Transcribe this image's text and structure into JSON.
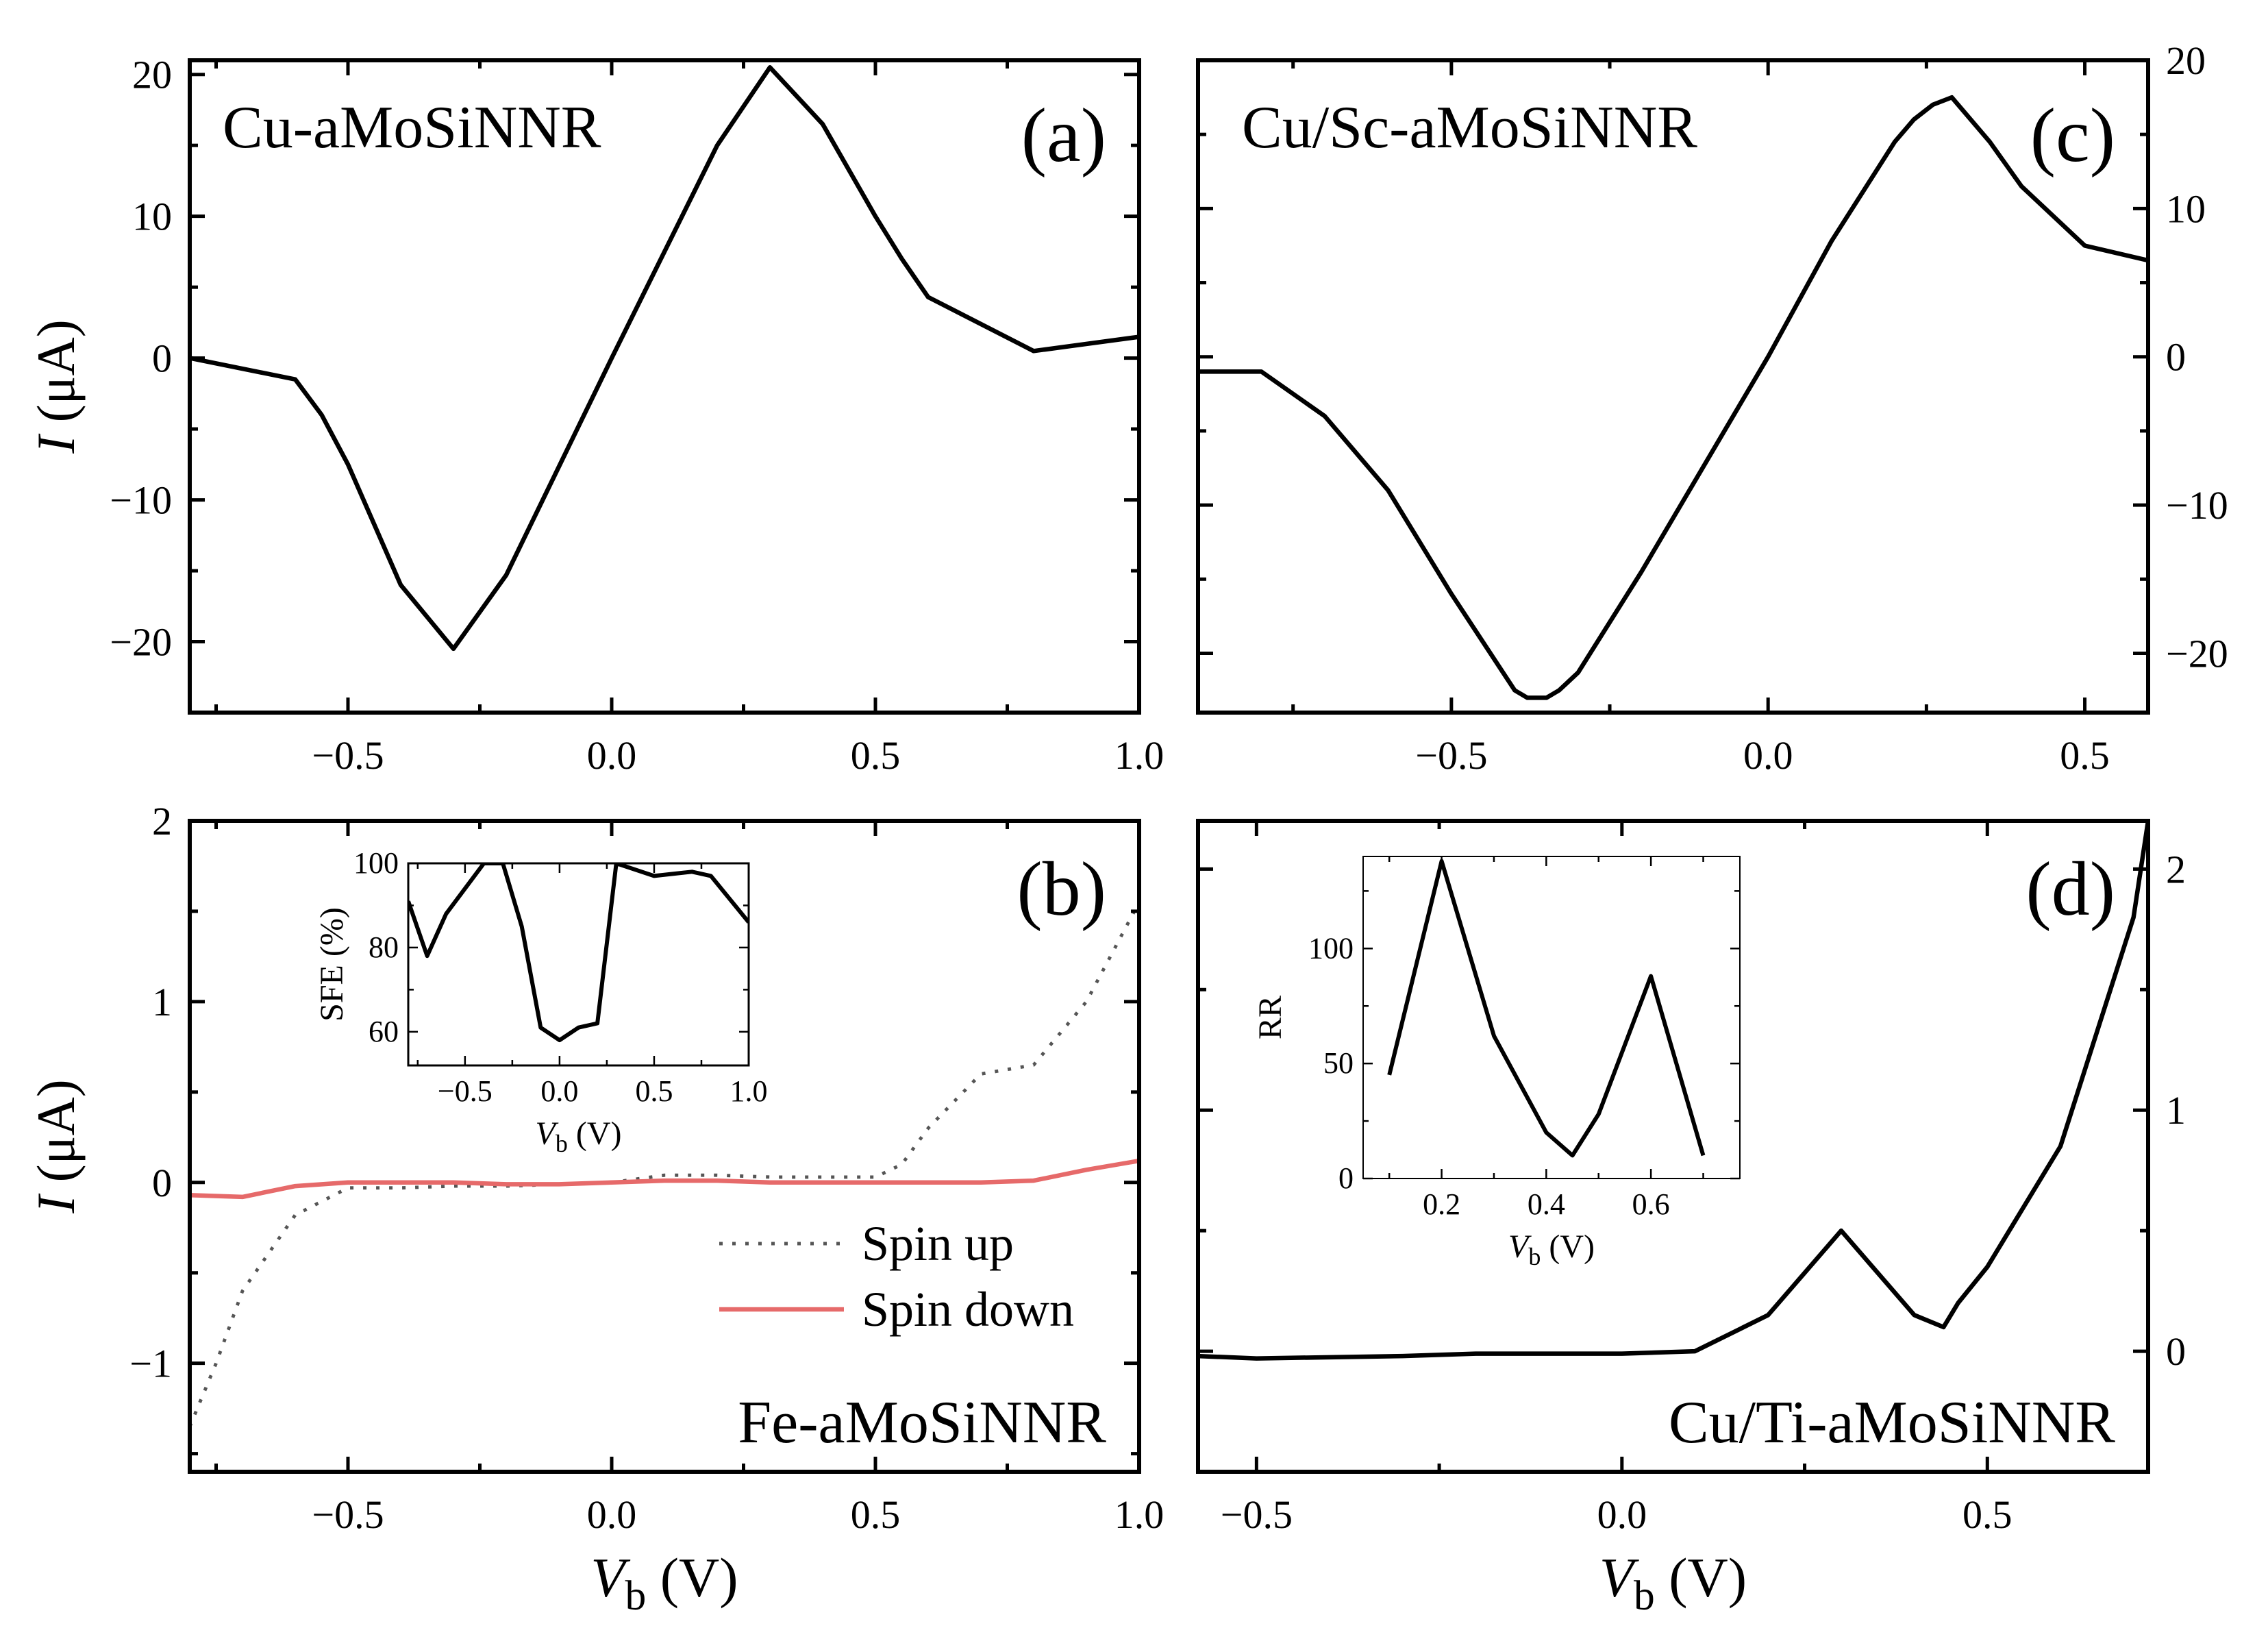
{
  "chart_data": [
    {
      "id": "a",
      "type": "line",
      "panel_label": "(a)",
      "title": "Cu-aMoSiNNR",
      "xlabel": "",
      "ylabel": {
        "italic": "I",
        "rest": " (μA)"
      },
      "xlim": [
        -0.8,
        1.0
      ],
      "ylim": [
        -25,
        21
      ],
      "xticks": [
        "−0.5",
        "0.0",
        "0.5",
        "1.0"
      ],
      "yticks": [
        "−20",
        "−10",
        "0",
        "10",
        "20"
      ],
      "series": [
        {
          "name": "I",
          "color": "#000000",
          "x": [
            -0.8,
            -0.6,
            -0.55,
            -0.5,
            -0.4,
            -0.3,
            -0.2,
            0.0,
            0.2,
            0.3,
            0.4,
            0.5,
            0.55,
            0.6,
            0.8,
            1.0
          ],
          "y": [
            0.0,
            -1.5,
            -4.0,
            -7.5,
            -16.0,
            -20.5,
            -15.3,
            0.0,
            15.0,
            20.5,
            16.5,
            10.0,
            7.0,
            4.3,
            0.5,
            1.5
          ]
        }
      ]
    },
    {
      "id": "b",
      "type": "line",
      "panel_label": "(b)",
      "title": "Fe-aMoSiNNR",
      "xlabel": {
        "italic": "V",
        "sub": "b",
        "rest": " (V)"
      },
      "ylabel": {
        "italic": "I",
        "rest": " (μA)"
      },
      "xlim": [
        -0.8,
        1.0
      ],
      "ylim": [
        -1.6,
        2.0
      ],
      "xticks": [
        "−0.5",
        "0.0",
        "0.5",
        "1.0"
      ],
      "yticks": [
        "−1",
        "0",
        "1",
        "2"
      ],
      "legend": [
        {
          "label": "Spin up",
          "color": "#555555",
          "style": "dotted"
        },
        {
          "label": "Spin down",
          "color": "#e66a6a",
          "style": "solid"
        }
      ],
      "series": [
        {
          "name": "Spin up",
          "color": "#555555",
          "x": [
            -0.8,
            -0.75,
            -0.7,
            -0.6,
            -0.5,
            -0.4,
            -0.3,
            -0.2,
            -0.1,
            0.0,
            0.1,
            0.2,
            0.3,
            0.4,
            0.5,
            0.55,
            0.6,
            0.7,
            0.8,
            0.9,
            1.0
          ],
          "y": [
            -1.35,
            -1.0,
            -0.6,
            -0.18,
            -0.03,
            -0.03,
            -0.02,
            -0.02,
            -0.01,
            0.0,
            0.04,
            0.04,
            0.03,
            0.03,
            0.03,
            0.1,
            0.3,
            0.6,
            0.65,
            1.0,
            1.55
          ]
        },
        {
          "name": "Spin down",
          "color": "#e66a6a",
          "x": [
            -0.8,
            -0.7,
            -0.6,
            -0.5,
            -0.4,
            -0.3,
            -0.2,
            -0.1,
            0.0,
            0.1,
            0.2,
            0.3,
            0.4,
            0.5,
            0.6,
            0.7,
            0.8,
            0.9,
            1.0
          ],
          "y": [
            -0.07,
            -0.08,
            -0.02,
            0.0,
            0.0,
            0.0,
            -0.01,
            -0.01,
            0.0,
            0.01,
            0.01,
            0.0,
            0.0,
            0.0,
            0.0,
            0.0,
            0.01,
            0.07,
            0.12
          ]
        }
      ],
      "inset": {
        "type": "line",
        "xlabel": {
          "italic": "V",
          "sub": "b",
          "rest": " (V)"
        },
        "ylabel": "SFE (%)",
        "xlim": [
          -0.8,
          1.0
        ],
        "ylim": [
          52,
          100
        ],
        "xticks": [
          "−0.5",
          "0.0",
          "0.5",
          "1.0"
        ],
        "yticks": [
          "60",
          "80",
          "100"
        ],
        "series": [
          {
            "name": "SFE",
            "color": "#000000",
            "x": [
              -0.8,
              -0.7,
              -0.6,
              -0.4,
              -0.3,
              -0.2,
              -0.1,
              0.0,
              0.1,
              0.2,
              0.3,
              0.5,
              0.7,
              0.8,
              1.0
            ],
            "y": [
              91,
              78,
              88,
              100,
              100,
              85,
              61,
              58,
              61,
              62,
              100,
              97,
              98,
              97,
              86
            ]
          }
        ]
      }
    },
    {
      "id": "c",
      "type": "line",
      "panel_label": "(c)",
      "title": "Cu/Sc-aMoSiNNR",
      "xlabel": "",
      "ylabel": "",
      "xlim": [
        -0.9,
        0.6
      ],
      "ylim": [
        -24,
        20
      ],
      "xticks": [
        "−0.5",
        "0.0",
        "0.5"
      ],
      "yticks": [
        "−20",
        "−10",
        "0",
        "10",
        "20"
      ],
      "series": [
        {
          "name": "I",
          "color": "#000000",
          "x": [
            -0.9,
            -0.8,
            -0.7,
            -0.6,
            -0.5,
            -0.4,
            -0.38,
            -0.35,
            -0.33,
            -0.3,
            -0.2,
            0.0,
            0.1,
            0.2,
            0.23,
            0.26,
            0.29,
            0.35,
            0.4,
            0.5,
            0.6
          ],
          "y": [
            -1.0,
            -1.0,
            -4.0,
            -9.0,
            -16.0,
            -22.5,
            -23.0,
            -23.0,
            -22.5,
            -21.3,
            -14.5,
            0.0,
            7.8,
            14.5,
            16.0,
            17.0,
            17.5,
            14.5,
            11.5,
            7.5,
            6.5
          ]
        }
      ]
    },
    {
      "id": "d",
      "type": "line",
      "panel_label": "(d)",
      "title": "Cu/Ti-aMoSiNNR",
      "xlabel": {
        "italic": "V",
        "sub": "b",
        "rest": " (V)"
      },
      "ylabel": "",
      "xlim": [
        -0.58,
        0.72
      ],
      "ylim": [
        -0.5,
        2.2
      ],
      "xticks": [
        "−0.5",
        "0.0",
        "0.5"
      ],
      "yticks": [
        "0",
        "1",
        "2"
      ],
      "series": [
        {
          "name": "I",
          "color": "#000000",
          "x": [
            -0.58,
            -0.5,
            -0.3,
            -0.2,
            0.0,
            0.1,
            0.2,
            0.3,
            0.4,
            0.44,
            0.46,
            0.5,
            0.6,
            0.7,
            0.72
          ],
          "y": [
            -0.02,
            -0.03,
            -0.02,
            -0.01,
            -0.01,
            0.0,
            0.15,
            0.5,
            0.15,
            0.1,
            0.2,
            0.35,
            0.85,
            1.8,
            2.2
          ]
        }
      ],
      "inset": {
        "type": "line",
        "xlabel": {
          "italic": "V",
          "sub": "b",
          "rest": " (V)"
        },
        "ylabel": "RR",
        "xlim": [
          0.05,
          0.77
        ],
        "ylim": [
          0,
          140
        ],
        "xticks": [
          "0.2",
          "0.4",
          "0.6"
        ],
        "yticks": [
          "0",
          "50",
          "100"
        ],
        "series": [
          {
            "name": "RR",
            "color": "#000000",
            "x": [
              0.1,
              0.2,
              0.3,
              0.4,
              0.45,
              0.5,
              0.6,
              0.7
            ],
            "y": [
              45,
              138,
              62,
              20,
              10,
              28,
              88,
              10
            ]
          }
        ]
      }
    }
  ]
}
